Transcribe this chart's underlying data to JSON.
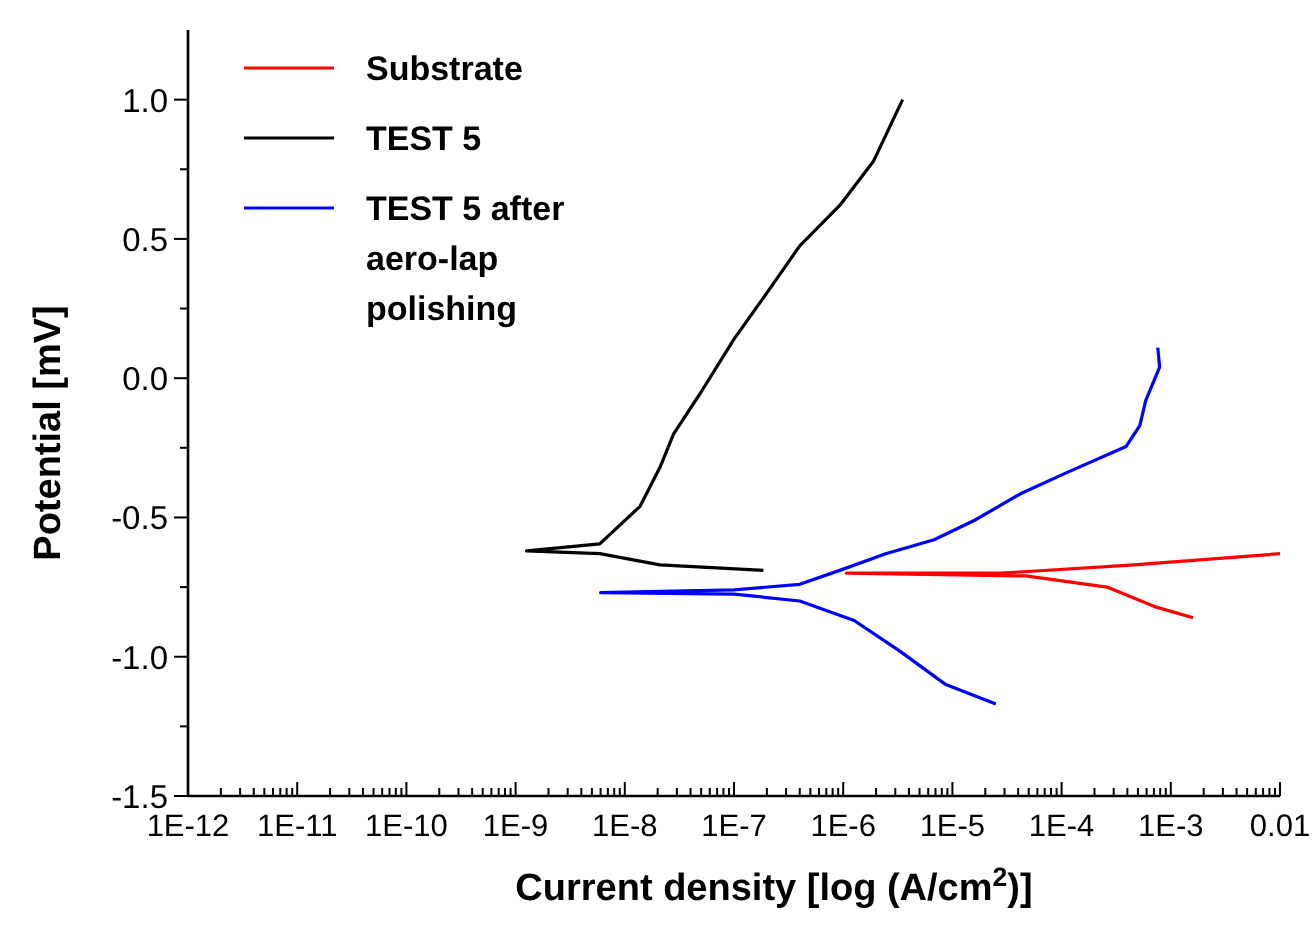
{
  "chart_data": {
    "type": "line",
    "xlabel": "Current density [log (A/cm$^{2}$)]",
    "ylabel": "Potential [mV]",
    "log": "x",
    "legend": "top left",
    "grid": false,
    "marker": "none",
    "line_style": "solid",
    "xlim": [
      1e-12,
      0.01
    ],
    "ylim": [
      -1.5,
      1.25
    ],
    "xticks": [
      {
        "value": 1e-12,
        "label": "1E-12"
      },
      {
        "value": 1e-11,
        "label": "1E-11"
      },
      {
        "value": 1e-10,
        "label": "1E-10"
      },
      {
        "value": 1e-09,
        "label": "1E-9"
      },
      {
        "value": 1e-08,
        "label": "1E-8"
      },
      {
        "value": 1e-07,
        "label": "1E-7"
      },
      {
        "value": 1e-06,
        "label": "1E-6"
      },
      {
        "value": 1e-05,
        "label": "1E-5"
      },
      {
        "value": 0.0001,
        "label": "1E-4"
      },
      {
        "value": 0.001,
        "label": "1E-3"
      },
      {
        "value": 0.01,
        "label": "0.01"
      },
      {
        "value": 2e-12,
        "label": null
      },
      {
        "value": 3e-12,
        "label": null
      },
      {
        "value": 4e-12,
        "label": null
      },
      {
        "value": 5e-12,
        "label": null
      },
      {
        "value": 6e-12,
        "label": null
      },
      {
        "value": 7e-12,
        "label": null
      },
      {
        "value": 8e-12,
        "label": null
      },
      {
        "value": 9e-12,
        "label": null
      },
      {
        "value": 2e-11,
        "label": null
      },
      {
        "value": 3e-11,
        "label": null
      },
      {
        "value": 4e-11,
        "label": null
      },
      {
        "value": 5e-11,
        "label": null
      },
      {
        "value": 6e-11,
        "label": null
      },
      {
        "value": 7e-11,
        "label": null
      },
      {
        "value": 8e-11,
        "label": null
      },
      {
        "value": 9e-11,
        "label": null
      },
      {
        "value": 2e-10,
        "label": null
      },
      {
        "value": 3e-10,
        "label": null
      },
      {
        "value": 4e-10,
        "label": null
      },
      {
        "value": 5e-10,
        "label": null
      },
      {
        "value": 6e-10,
        "label": null
      },
      {
        "value": 7e-10,
        "label": null
      },
      {
        "value": 8e-10,
        "label": null
      },
      {
        "value": 9e-10,
        "label": null
      },
      {
        "value": 2e-09,
        "label": null
      },
      {
        "value": 3e-09,
        "label": null
      },
      {
        "value": 4e-09,
        "label": null
      },
      {
        "value": 5e-09,
        "label": null
      },
      {
        "value": 6e-09,
        "label": null
      },
      {
        "value": 7e-09,
        "label": null
      },
      {
        "value": 8e-09,
        "label": null
      },
      {
        "value": 9e-09,
        "label": null
      },
      {
        "value": 2e-08,
        "label": null
      },
      {
        "value": 3e-08,
        "label": null
      },
      {
        "value": 4e-08,
        "label": null
      },
      {
        "value": 5e-08,
        "label": null
      },
      {
        "value": 6e-08,
        "label": null
      },
      {
        "value": 7e-08,
        "label": null
      },
      {
        "value": 8e-08,
        "label": null
      },
      {
        "value": 9e-08,
        "label": null
      },
      {
        "value": 2e-07,
        "label": null
      },
      {
        "value": 3e-07,
        "label": null
      },
      {
        "value": 4e-07,
        "label": null
      },
      {
        "value": 5e-07,
        "label": null
      },
      {
        "value": 6e-07,
        "label": null
      },
      {
        "value": 7e-07,
        "label": null
      },
      {
        "value": 8e-07,
        "label": null
      },
      {
        "value": 9e-07,
        "label": null
      },
      {
        "value": 2e-06,
        "label": null
      },
      {
        "value": 3e-06,
        "label": null
      },
      {
        "value": 4e-06,
        "label": null
      },
      {
        "value": 5e-06,
        "label": null
      },
      {
        "value": 6e-06,
        "label": null
      },
      {
        "value": 7e-06,
        "label": null
      },
      {
        "value": 8e-06,
        "label": null
      },
      {
        "value": 9e-06,
        "label": null
      },
      {
        "value": 2e-05,
        "label": null
      },
      {
        "value": 3e-05,
        "label": null
      },
      {
        "value": 4e-05,
        "label": null
      },
      {
        "value": 5e-05,
        "label": null
      },
      {
        "value": 6e-05,
        "label": null
      },
      {
        "value": 7e-05,
        "label": null
      },
      {
        "value": 8e-05,
        "label": null
      },
      {
        "value": 9e-05,
        "label": null
      },
      {
        "value": 0.0002,
        "label": null
      },
      {
        "value": 0.0003,
        "label": null
      },
      {
        "value": 0.0004,
        "label": null
      },
      {
        "value": 0.0005,
        "label": null
      },
      {
        "value": 0.0006,
        "label": null
      },
      {
        "value": 0.0007,
        "label": null
      },
      {
        "value": 0.0008,
        "label": null
      },
      {
        "value": 0.0009,
        "label": null
      },
      {
        "value": 0.002,
        "label": null
      },
      {
        "value": 0.003,
        "label": null
      },
      {
        "value": 0.004,
        "label": null
      },
      {
        "value": 0.005,
        "label": null
      },
      {
        "value": 0.006,
        "label": null
      },
      {
        "value": 0.007,
        "label": null
      },
      {
        "value": 0.008,
        "label": null
      },
      {
        "value": 0.009,
        "label": null
      }
    ],
    "yticks": [
      {
        "value": 1,
        "label": "1.0"
      },
      {
        "value": 0.5,
        "label": "0.5"
      },
      {
        "value": 0,
        "label": "0.0"
      },
      {
        "value": -0.5,
        "label": "-0.5"
      },
      {
        "value": -1,
        "label": "-1.0"
      },
      {
        "value": -1.5,
        "label": "-1.5"
      },
      {
        "value": 0.75,
        "label": null
      },
      {
        "value": 0.25,
        "label": null
      },
      {
        "value": -0.25,
        "label": null
      },
      {
        "value": -0.75,
        "label": null
      },
      {
        "value": -1.25,
        "label": null
      }
    ],
    "series": [
      {
        "name": "Substrate",
        "color": "#ff0000",
        "x": [
          0.0016,
          0.00071,
          0.00026,
          4.7e-05,
          1.07e-06,
          2.8e-05,
          0.00046,
          0.01
        ],
        "values": [
          -0.86,
          -0.82,
          -0.75,
          -0.71,
          -0.7,
          -0.7,
          -0.67,
          -0.63
        ]
      },
      {
        "name": "TEST 5",
        "color": "#000000",
        "x": [
          1.86e-07,
          2.1e-08,
          5.9e-09,
          1.26e-09,
          5.9e-09,
          1.38e-08,
          2.1e-08,
          2.8e-08,
          4.9e-08,
          1e-07,
          1.95e-07,
          4e-07,
          9.3e-07,
          1.9e-06,
          3.5e-06
        ],
        "values": [
          -0.69,
          -0.67,
          -0.63,
          -0.62,
          -0.595,
          -0.46,
          -0.32,
          -0.2,
          -0.055,
          0.14,
          0.3,
          0.475,
          0.62,
          0.78,
          1.0
        ]
      },
      {
        "name": "TEST 5 after aero-lap polishing",
        "color": "#0000ff",
        "x": [
          2.5e-05,
          8.7e-06,
          3.3e-06,
          1.26e-06,
          4e-07,
          1e-07,
          6e-09,
          1e-07,
          4e-07,
          9.3e-07,
          2.45e-06,
          6.8e-06,
          1.6e-05,
          4.2e-05,
          0.00011,
          0.00039,
          0.00052,
          0.00059,
          0.00079,
          0.00076
        ],
        "values": [
          -1.17,
          -1.1,
          -0.98,
          -0.87,
          -0.8,
          -0.775,
          -0.77,
          -0.76,
          -0.74,
          -0.69,
          -0.63,
          -0.58,
          -0.51,
          -0.415,
          -0.34,
          -0.245,
          -0.17,
          -0.08,
          0.04,
          0.11
        ]
      }
    ]
  }
}
